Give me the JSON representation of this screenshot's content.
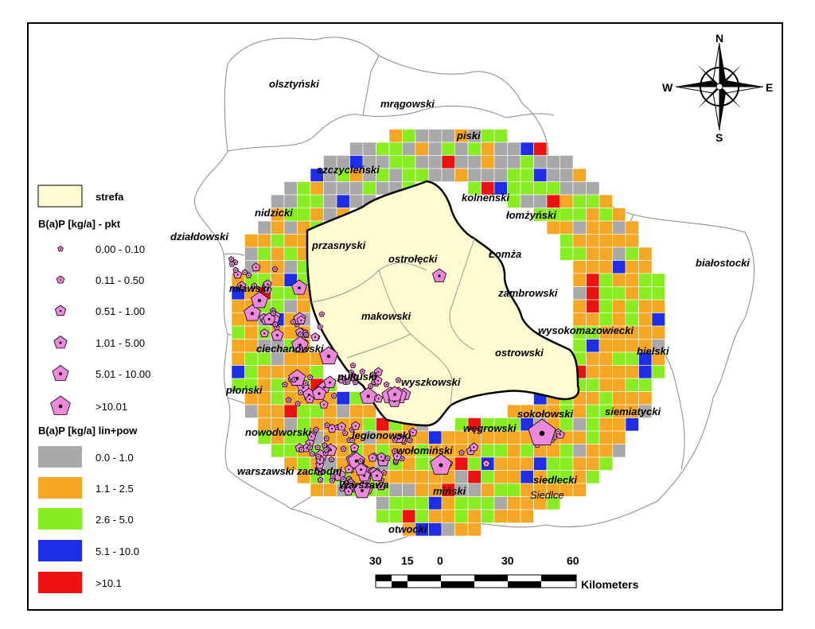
{
  "legend": {
    "zone_label": "strefa",
    "zone_color": "#FFFBD0",
    "points_title": "B(a)P [kg/a] - pkt",
    "point_classes": [
      "0.00 - 0.10",
      "0.11 - 0.50",
      "0.51 - 1.00",
      "1.01 - 5.00",
      "5.01 - 10.00",
      ">10.01"
    ],
    "point_color": "#EE88DD",
    "grid_title": "B(a)P [kg/a] lin+pow",
    "grid_classes": [
      {
        "label": "0.0 - 1.0",
        "color": "#A9A9A9"
      },
      {
        "label": "1.1 - 2.5",
        "color": "#F5A623"
      },
      {
        "label": "2.6 - 5.0",
        "color": "#88EE22"
      },
      {
        "label": "5.1 - 10.0",
        "color": "#1E2EE6"
      },
      {
        "label": ">10.1",
        "color": "#EE1111"
      }
    ]
  },
  "compass": {
    "n": "N",
    "s": "S",
    "e": "E",
    "w": "W"
  },
  "scale_bar": {
    "ticks": [
      "30",
      "15",
      "0",
      "30",
      "60"
    ],
    "unit": "Kilometers"
  },
  "districts": {
    "olsztynski": "olsztyński",
    "mragowski": "mrągowski",
    "piski": "piski",
    "szczycienski": "szczycieński",
    "kolnenski": "kolneński",
    "nidzicki": "nidzicki",
    "lomzynski": "łomżyński",
    "lomza": "Łomża",
    "dzialdowski": "działdowski",
    "przasnyski": "przasnyski",
    "ostrolecki": "ostrołęcki",
    "bialostocki": "białostocki",
    "mlawski": "mławski",
    "zambrowski": "zambrowski",
    "makowski": "makowski",
    "wysokomazowiecki": "wysokomazowiecki",
    "ciechanowski": "ciechanowski",
    "ostrowski": "ostrowski",
    "bielski": "bielski",
    "pultuski": "pułtuski",
    "wyszkowski": "wyszkowski",
    "plonski": "płoński",
    "sokolowski": "sokołowski",
    "siemiatycki": "siemiatycki",
    "nowodworski": "nowodworski",
    "legionowski": "legionowski",
    "wegrowski": "węgrowski",
    "wolominski": "wołomiński",
    "warszawski_zachodni": "warszawski zachodni",
    "warszawa": "Warszawa",
    "minski": "miński",
    "siedlecki": "siedlecki",
    "siedlce": "Siedlce",
    "otwocki": "otwocki"
  }
}
